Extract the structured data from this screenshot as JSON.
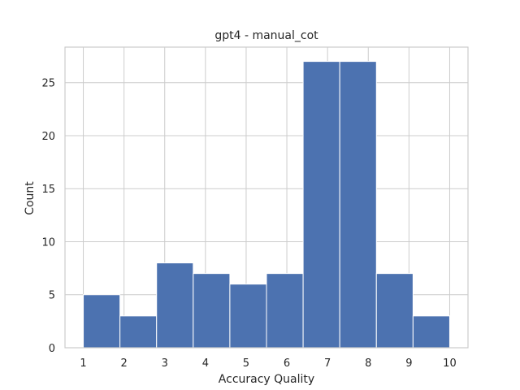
{
  "chart_data": {
    "type": "bar",
    "title": "gpt4 - manual_cot",
    "xlabel": "Accuracy Quality",
    "ylabel": "Count",
    "xlim": [
      0.55,
      10.45
    ],
    "ylim": [
      0,
      28.35
    ],
    "xticks": [
      1,
      2,
      3,
      4,
      5,
      6,
      7,
      8,
      9,
      10
    ],
    "yticks": [
      0,
      5,
      10,
      15,
      20,
      25
    ],
    "grid": true,
    "bins": [
      {
        "x0": 1.0,
        "x1": 1.9,
        "count": 5
      },
      {
        "x0": 1.9,
        "x1": 2.8,
        "count": 3
      },
      {
        "x0": 2.8,
        "x1": 3.7,
        "count": 8
      },
      {
        "x0": 3.7,
        "x1": 4.6,
        "count": 7
      },
      {
        "x0": 4.6,
        "x1": 5.5,
        "count": 6
      },
      {
        "x0": 5.5,
        "x1": 6.4,
        "count": 7
      },
      {
        "x0": 6.4,
        "x1": 7.3,
        "count": 27
      },
      {
        "x0": 7.3,
        "x1": 8.2,
        "count": 27
      },
      {
        "x0": 8.2,
        "x1": 9.1,
        "count": 7
      },
      {
        "x0": 9.1,
        "x1": 10.0,
        "count": 3
      }
    ],
    "colors": {
      "bar": "#4c72b0"
    }
  }
}
